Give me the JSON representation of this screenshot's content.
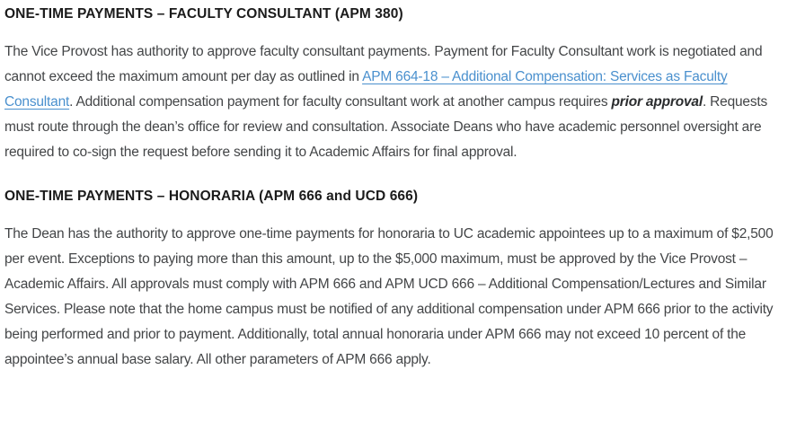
{
  "page": {
    "background": "#ffffff"
  },
  "colors": {
    "heading_text": "#1b1b1b",
    "body_text": "#434547",
    "link_blue": "#4a90ce"
  },
  "sections": [
    {
      "heading": "ONE-TIME PAYMENTS – FACULTY CONSULTANT (APM 380)",
      "segments": [
        {
          "type": "text",
          "text": "The Vice Provost has authority to approve faculty consultant payments. Payment for Faculty Consultant work is negotiated and cannot exceed the maximum amount per day as outlined in "
        },
        {
          "type": "link",
          "text": "APM 664-18 – Additional Compensation: Services as Faculty Consultant"
        },
        {
          "type": "text",
          "text": ". Additional compensation payment for faculty consultant work at another campus requires "
        },
        {
          "type": "bold-italic",
          "text": "prior approval"
        },
        {
          "type": "text",
          "text": ". Requests must route through the dean’s office for review and consultation. Associate Deans who have academic personnel oversight are required to co-sign the request before sending it to Academic Affairs for final approval."
        }
      ]
    },
    {
      "heading": "ONE-TIME PAYMENTS – HONORARIA (APM 666 and UCD 666)",
      "segments": [
        {
          "type": "text",
          "text": "The Dean has the authority to approve one-time payments for honoraria to UC academic appointees up to a maximum of $2,500 per event. Exceptions to paying more than this amount, up to the $5,000 maximum, must be approved by the Vice Provost – Academic Affairs. All approvals must comply with APM 666 and APM UCD 666 – Additional Compensation/Lectures and Similar Services. Please note that the home campus must be notified of any additional compensation under APM 666 prior to the activity being performed and prior to payment. Additionally, total annual honoraria under APM 666 may not exceed 10 percent of the appointee’s annual base salary. All other parameters of APM 666 apply."
        }
      ]
    }
  ]
}
